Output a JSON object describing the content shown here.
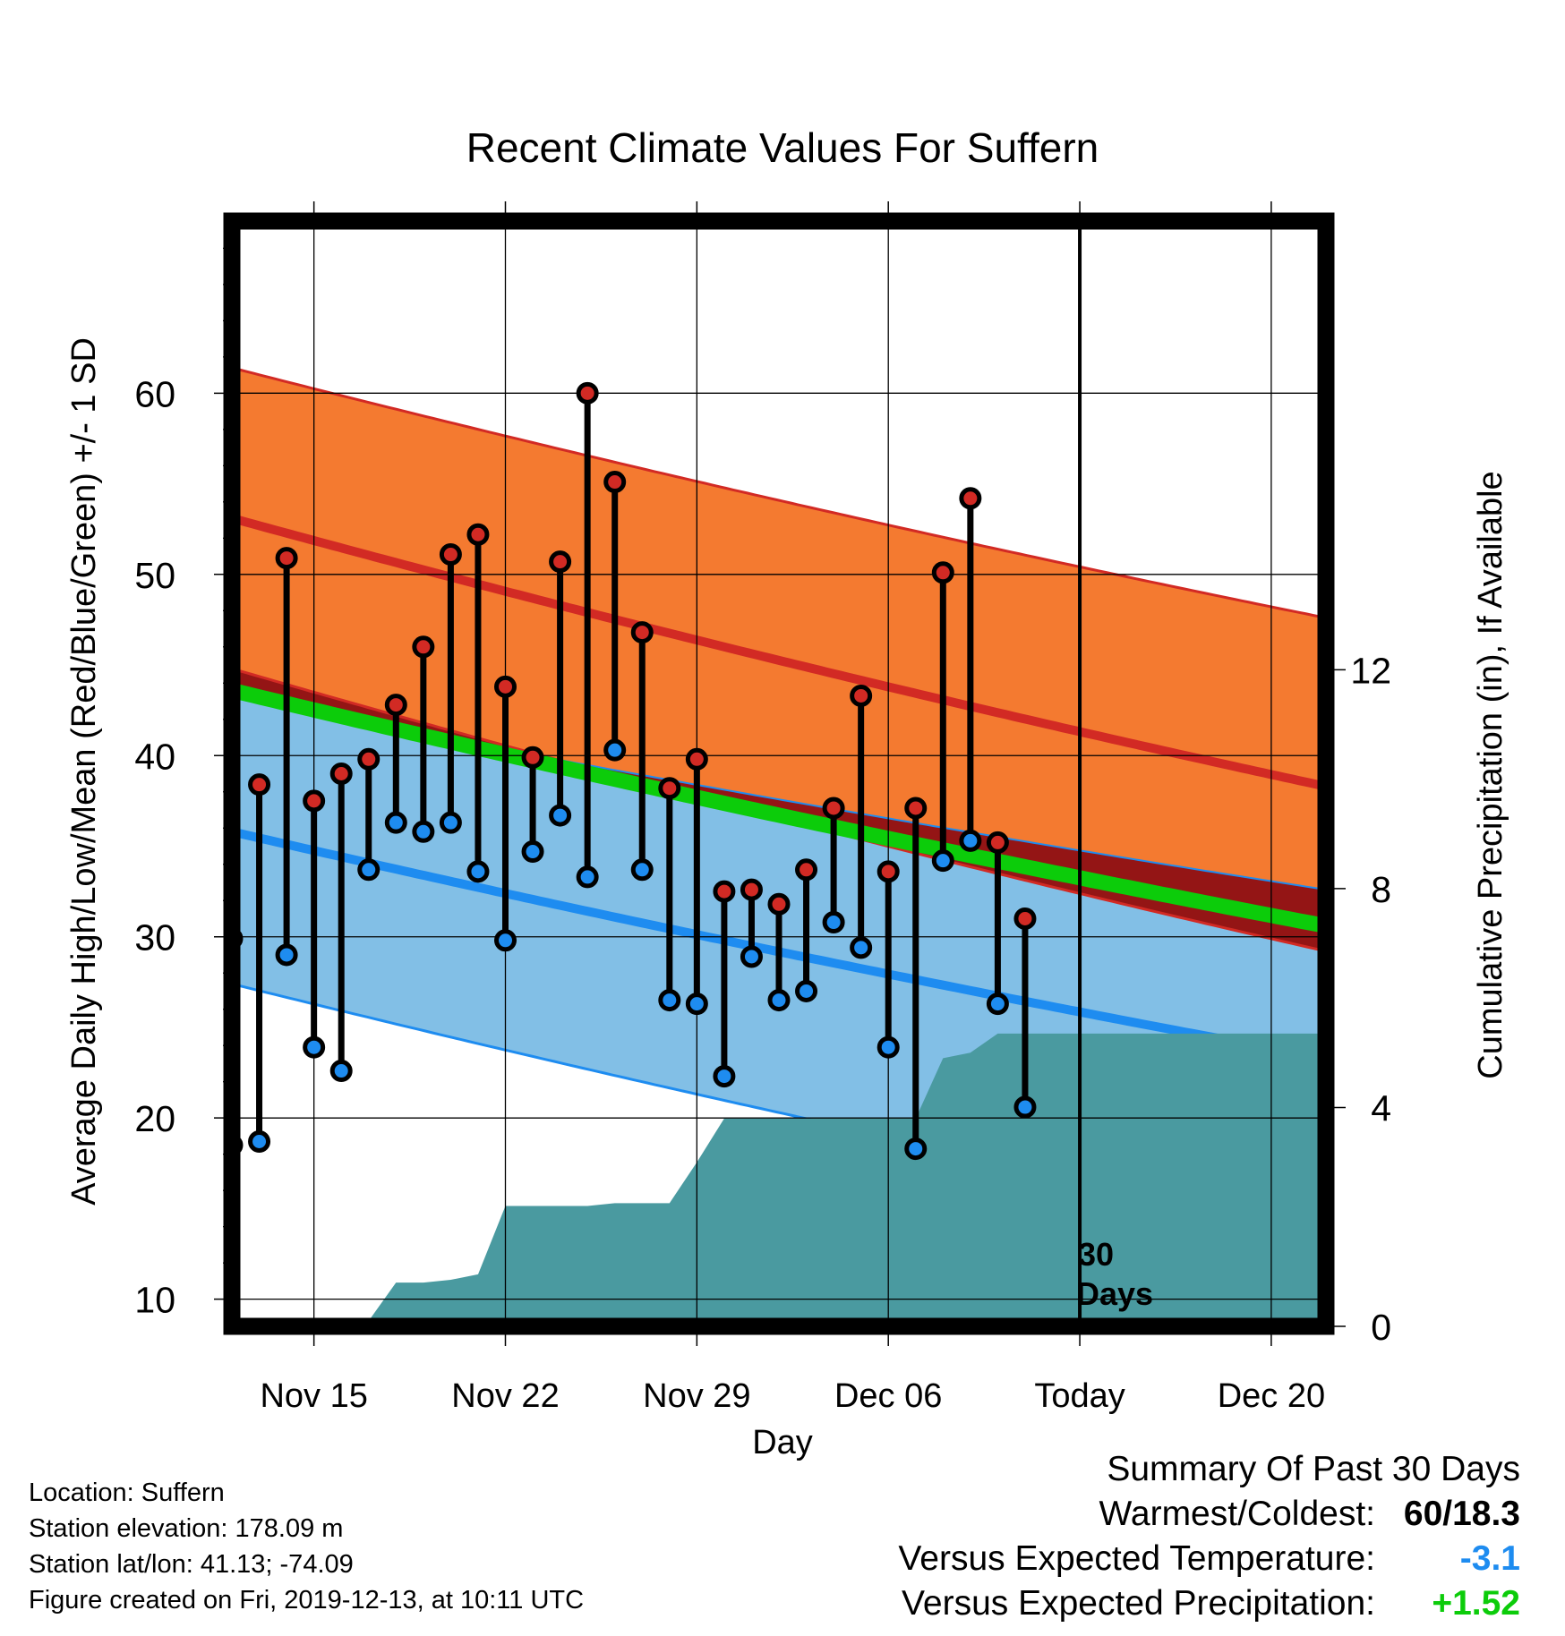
{
  "chart_data": {
    "type": "line",
    "title": "Recent Climate Values For Suffern",
    "xlabel": "Day",
    "ylabel": "Average Daily High/Low/Mean (Red/Blue/Green) +/- 1 SD",
    "y2label": "Cumulative Precipitation (in), If Available",
    "x_start": "Nov 12",
    "x_ticks": [
      "Nov 15",
      "Nov 22",
      "Nov 29",
      "Dec 06",
      "Today",
      "Dec 20"
    ],
    "today": "Dec 13",
    "xlim": [
      "Nov 12",
      "Dec 22"
    ],
    "ylim": [
      8.5,
      69.5
    ],
    "y_ticks": [
      10,
      20,
      30,
      40,
      50,
      60
    ],
    "y2lim": [
      0,
      20.2
    ],
    "y2_ticks": [
      0,
      4,
      8,
      12
    ],
    "grid": true,
    "annotation": [
      "30",
      "Days"
    ],
    "normal_high": {
      "start": 53.1,
      "end": 38.3
    },
    "normal_high_sd": {
      "upper_start": 61.4,
      "upper_end": 47.6,
      "lower_start": 44.8,
      "lower_end": 29.2
    },
    "normal_low": {
      "start": 35.8,
      "end": 23.3
    },
    "normal_low_sd": {
      "upper_start": 43.2,
      "upper_end": 32.6,
      "lower_start": 27.4,
      "lower_end": 14.0
    },
    "normal_mean": {
      "start": 43.6,
      "end": 30.6
    },
    "observed_high": [
      29.9,
      38.4,
      50.9,
      37.5,
      39.0,
      39.8,
      42.8,
      46.0,
      51.1,
      52.2,
      43.8,
      39.9,
      50.7,
      60.0,
      55.1,
      46.8,
      38.2,
      39.8,
      32.5,
      32.6,
      31.8,
      33.7,
      37.1,
      43.3,
      33.6,
      37.1,
      50.1,
      54.2,
      35.2,
      31.0
    ],
    "observed_low": [
      18.5,
      18.7,
      29.0,
      23.9,
      22.6,
      33.7,
      36.3,
      35.8,
      36.3,
      33.6,
      29.8,
      34.7,
      36.7,
      33.3,
      40.3,
      33.7,
      26.5,
      26.3,
      22.3,
      28.9,
      26.5,
      27.0,
      30.8,
      29.4,
      23.9,
      18.3,
      34.2,
      35.3,
      26.3,
      20.6
    ],
    "cumulative_precip": [
      0,
      0,
      0,
      0,
      0,
      0.1,
      0.8,
      0.8,
      0.85,
      0.95,
      2.2,
      2.2,
      2.2,
      2.2,
      2.25,
      2.25,
      2.25,
      3.0,
      3.8,
      3.8,
      3.8,
      3.8,
      3.8,
      3.8,
      3.8,
      3.8,
      4.9,
      5.0,
      5.35,
      5.35,
      5.35,
      5.35,
      5.35,
      5.35,
      5.35,
      5.35,
      5.35,
      5.35,
      5.35,
      5.35,
      5.35
    ],
    "colors": {
      "high_band": "#f47a30",
      "high_line": "#d22a24",
      "low_band": "#82bfe6",
      "low_line": "#1e8cf0",
      "mean_band": "#0ccc0a",
      "overlap": "#941515",
      "precip": "#4a9aa0",
      "high_dot": "#d22a24",
      "low_dot": "#1e8cf0"
    }
  },
  "footer": {
    "location": "Location: Suffern",
    "elevation": "Station elevation: 178.09 m",
    "latlon": "Station lat/lon: 41.13; -74.09",
    "created": "Figure created on Fri, 2019-12-13, at 10:11 UTC"
  },
  "summary": {
    "heading": "Summary Of Past 30 Days",
    "warmest_label": "Warmest/Coldest:",
    "warmest_value": "60/18.3",
    "temp_label": "Versus Expected Temperature:",
    "temp_value": "-3.1",
    "temp_color": "#1e8cf0",
    "precip_label": "Versus Expected Precipitation:",
    "precip_value": "+1.52",
    "precip_color": "#0ccc0a"
  }
}
